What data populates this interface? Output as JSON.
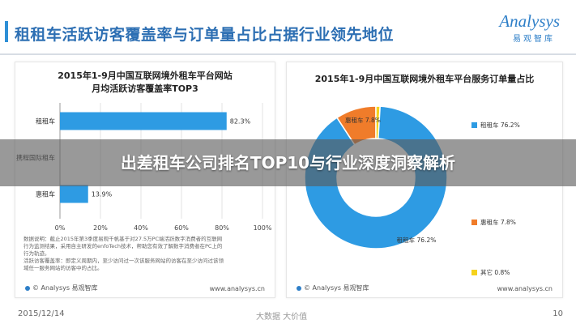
{
  "header": {
    "title": "租租车活跃访客覆盖率与订单量占比占据行业领先地位",
    "logo_word": "Analysys",
    "logo_sub": "易观智库"
  },
  "overlay": {
    "text": "出差租车公司排名TOP10与行业深度洞察解析"
  },
  "footer": {
    "date": "2015/12/14",
    "watermark": "大数据   大价值",
    "page": "10"
  },
  "panels": {
    "left": {
      "title_line1": "2015年1-9月中国互联网境外租车平台网站",
      "title_line2": "月均活跃访客覆盖率TOP3",
      "note_line1": "数据说明：截止2015年第3季度易观千帆基于对27.5万PC端活跃数字消费者的互联网",
      "note_line2": "行为监测结果，采用自主研发的enfoTech技术，帮助您有效了解数字消费者在PC上的",
      "note_line3": "行为轨迹。",
      "note_line4": "活跃访客覆盖率：即定义周期内，至少访问过一次该服务网站的访客在至少访问过该领",
      "note_line5": "域任一服务网站的访客中的占比。",
      "source": "© Analysys 易观智库",
      "url": "www.analysys.cn"
    },
    "right": {
      "title": "2015年1-9月中国互联网境外租车平台服务订单量占比",
      "source": "© Analysys 易观智库",
      "url": "www.analysys.cn"
    }
  },
  "chart_data": [
    {
      "type": "bar",
      "orientation": "horizontal",
      "title": "2015年1-9月中国互联网境外租车平台网站月均活跃访客覆盖率TOP3",
      "categories": [
        "租租车",
        "携程国际租车",
        "惠租车"
      ],
      "values": [
        82.3,
        0,
        13.9
      ],
      "value_labels": [
        "82.3%",
        "",
        "13.9%"
      ],
      "xlim": [
        0,
        100
      ],
      "xticks": [
        "0%",
        "20%",
        "40%",
        "60%",
        "80%",
        "100%"
      ],
      "color": "#2e9be3"
    },
    {
      "type": "pie",
      "donut": true,
      "title": "2015年1-9月中国互联网境外租车平台服务订单量占比",
      "slices": [
        {
          "name": "租租车",
          "value": 76.2,
          "label": "租租车 76.2%",
          "color": "#2e9be3"
        },
        {
          "name": "惠租车",
          "value": 7.8,
          "label": "惠租车 7.8%",
          "color": "#f07c2a"
        },
        {
          "name": "其它",
          "value": 0.8,
          "label": "其它 0.8%",
          "color": "#f5d21c"
        }
      ],
      "inner_labels": [
        "惠租车 7.8%",
        "租租车 76.2%"
      ]
    }
  ]
}
